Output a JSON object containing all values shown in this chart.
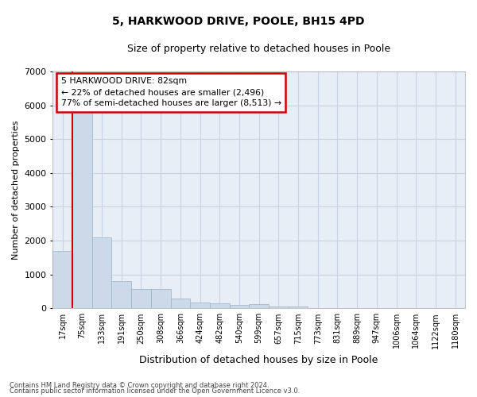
{
  "title": "5, HARKWOOD DRIVE, POOLE, BH15 4PD",
  "subtitle": "Size of property relative to detached houses in Poole",
  "xlabel": "Distribution of detached houses by size in Poole",
  "ylabel": "Number of detached properties",
  "bin_labels": [
    "17sqm",
    "75sqm",
    "133sqm",
    "191sqm",
    "250sqm",
    "308sqm",
    "366sqm",
    "424sqm",
    "482sqm",
    "540sqm",
    "599sqm",
    "657sqm",
    "715sqm",
    "773sqm",
    "831sqm",
    "889sqm",
    "947sqm",
    "1006sqm",
    "1064sqm",
    "1122sqm",
    "1180sqm"
  ],
  "bar_heights": [
    1700,
    5900,
    2100,
    800,
    580,
    580,
    300,
    175,
    140,
    105,
    120,
    65,
    65,
    5,
    5,
    5,
    5,
    5,
    5,
    5,
    5
  ],
  "bar_color": "#ccd9e8",
  "bar_edge_color": "#9ab0c8",
  "grid_color": "#c8d4e4",
  "bg_color": "#e8eef6",
  "annotation_text": "5 HARKWOOD DRIVE: 82sqm\n← 22% of detached houses are smaller (2,496)\n77% of semi-detached houses are larger (8,513) →",
  "vline_color": "#cc0000",
  "box_color": "#cc0000",
  "ylim": [
    0,
    7000
  ],
  "yticks": [
    0,
    1000,
    2000,
    3000,
    4000,
    5000,
    6000,
    7000
  ],
  "footer1": "Contains HM Land Registry data © Crown copyright and database right 2024.",
  "footer2": "Contains public sector information licensed under the Open Government Licence v3.0."
}
